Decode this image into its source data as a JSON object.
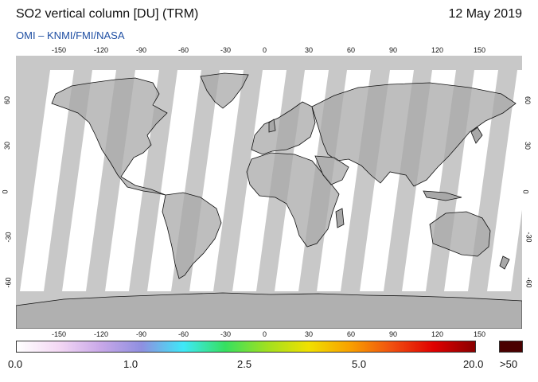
{
  "header": {
    "title": "SO2 vertical column [DU] (TRM)",
    "date": "12 May 2019",
    "credit": "OMI  –  KNMI/FMI/NASA"
  },
  "map": {
    "projection": "equirectangular",
    "lon_range": [
      -180,
      180
    ],
    "lat_range": [
      -90,
      90
    ],
    "lon_ticks": [
      "-150",
      "-120",
      "-90",
      "-60",
      "-30",
      "0",
      "30",
      "60",
      "90",
      "120",
      "150"
    ],
    "lat_ticks_left": [
      "60",
      "30",
      "0",
      "-30",
      "-60"
    ],
    "lat_ticks_right": [
      "60",
      "30",
      "0",
      "-30",
      "-60"
    ],
    "colors": {
      "ocean_no_data": "#c8c8c8",
      "land_no_data": "#a8a8a8",
      "swath_clean": "#ffffff",
      "coastline": "#111111"
    }
  },
  "colorbar": {
    "labels": [
      "0.0",
      "1.0",
      "2.5",
      "5.0",
      "20.0"
    ],
    "over_label": ">50",
    "over_color": "#4a0000",
    "stops": [
      "#ffffff",
      "#f4d8f4",
      "#c9a8e8",
      "#8f8fe0",
      "#3ee8f8",
      "#35e060",
      "#a0e020",
      "#f0e000",
      "#f8a000",
      "#f05010",
      "#e00000",
      "#8a0000"
    ]
  }
}
